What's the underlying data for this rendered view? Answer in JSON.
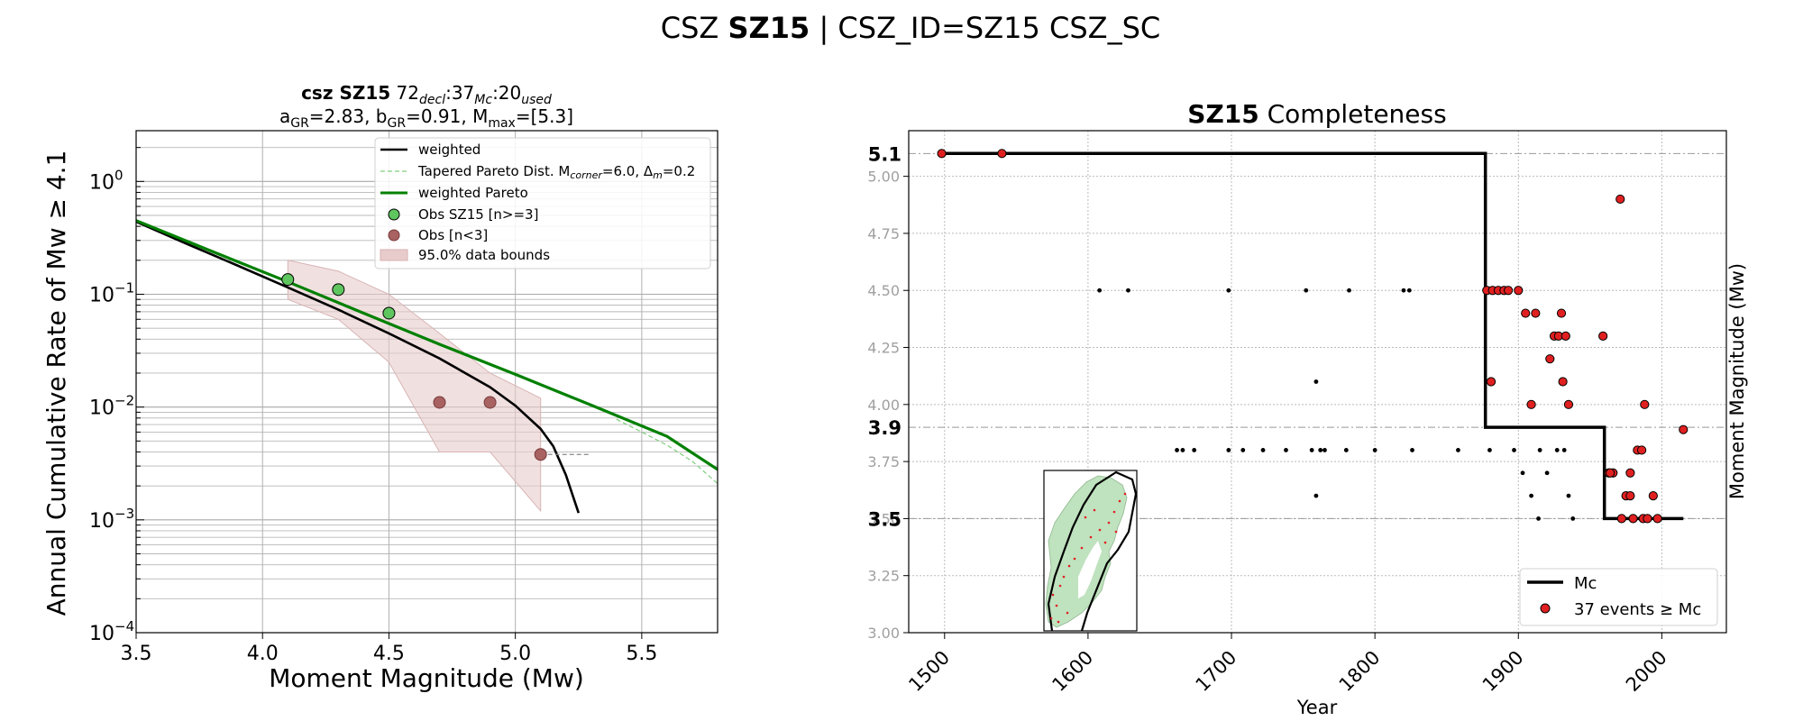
{
  "suptitle": {
    "pre": "CSZ ",
    "bold": "SZ15",
    "post": " | CSZ_ID=SZ15 CSZ_SC"
  },
  "chart_data": [
    {
      "type": "line",
      "title_line1": {
        "bold": "csz SZ15",
        "rest": "  72",
        "sub1": "decl",
        "mid1": ":37",
        "sub2": "Mc",
        "mid2": ":20",
        "sub3": "used"
      },
      "title_line2": {
        "a": "a",
        "a_sub": "GR",
        "a_val": "=2.83,  b",
        "b_sub": "GR",
        "b_val": "=0.91, M",
        "m_sub": "max",
        "m_val": "=[5.3]"
      },
      "xlabel": "Moment Magnitude (Mw)",
      "ylabel": "Annual Cumulative Rate of Mw  ≥  4.1",
      "xlim": [
        3.5,
        5.8
      ],
      "ylim_log10": [
        -4,
        0.45
      ],
      "x_ticks": [
        "3.5",
        "4.0",
        "4.5",
        "5.0",
        "5.5"
      ],
      "x_tick_values": [
        3.5,
        4.0,
        4.5,
        5.0,
        5.5
      ],
      "y_tick_exponents": [
        0,
        -1,
        -2,
        -3,
        -4
      ],
      "y_tick_base": "10",
      "scale_y": "log",
      "grid": true,
      "legend_position": "top-right",
      "legend": [
        {
          "label": "weighted",
          "style": "black-line"
        },
        {
          "label": "Tapered Pareto Dist. M",
          "sub": "corner",
          "label2": "=6.0, Δ",
          "sub2": "m",
          "label3": "=0.2",
          "style": "green-dash"
        },
        {
          "label": "weighted Pareto",
          "style": "green-line"
        },
        {
          "label": "Obs SZ15 [n>=3]",
          "style": "green-dot"
        },
        {
          "label": "Obs [n<3]",
          "style": "brown-dot"
        },
        {
          "label": "95.0% data bounds",
          "style": "band"
        }
      ],
      "series": [
        {
          "role": "weighted",
          "color": "#000000",
          "x": [
            3.5,
            3.7,
            3.9,
            4.1,
            4.3,
            4.5,
            4.7,
            4.9,
            5.0,
            5.1,
            5.15,
            5.2,
            5.25
          ],
          "y": [
            0.44,
            0.28,
            0.18,
            0.115,
            0.073,
            0.045,
            0.027,
            0.015,
            0.0103,
            0.0064,
            0.0045,
            0.0025,
            0.00115
          ]
        },
        {
          "role": "weighted-pareto",
          "color": "#008000",
          "x": [
            3.5,
            3.8,
            4.1,
            4.4,
            4.7,
            5.0,
            5.3,
            5.6,
            5.8
          ],
          "y": [
            0.45,
            0.24,
            0.129,
            0.068,
            0.036,
            0.0195,
            0.0104,
            0.0055,
            0.0028
          ]
        },
        {
          "role": "tapered-pareto",
          "color": "#7fce7f",
          "x": [
            5.4,
            5.5,
            5.6,
            5.7,
            5.8
          ],
          "y": [
            0.0078,
            0.006,
            0.0046,
            0.0033,
            0.0021
          ]
        }
      ],
      "band": {
        "color": "#e8cccc",
        "x": [
          4.1,
          4.3,
          4.5,
          4.7,
          4.9,
          5.1
        ],
        "upper": [
          0.2,
          0.16,
          0.1,
          0.045,
          0.02,
          0.012
        ],
        "lower": [
          0.09,
          0.06,
          0.025,
          0.004,
          0.004,
          0.0012
        ]
      },
      "obs_complete": {
        "color": "#5fc65f",
        "x": [
          4.1,
          4.3,
          4.5
        ],
        "y": [
          0.135,
          0.11,
          0.068
        ]
      },
      "obs_sparse": {
        "color": "#a86262",
        "x": [
          4.7,
          4.9,
          5.1
        ],
        "y": [
          0.011,
          0.011,
          0.0038
        ]
      },
      "mmax_dash": {
        "x": [
          5.1,
          5.3
        ],
        "y": 0.0038
      }
    },
    {
      "type": "scatter",
      "title": {
        "bold": "SZ15",
        "rest": " Completeness"
      },
      "xlabel": "Year",
      "ylabel": "Moment Magnitude (Mw)",
      "xlim": [
        1475,
        2045
      ],
      "ylim": [
        3.0,
        5.2
      ],
      "x_ticks": [
        "1500",
        "1600",
        "1700",
        "1800",
        "1900",
        "2000"
      ],
      "x_tick_values": [
        1500,
        1600,
        1700,
        1800,
        1900,
        2000
      ],
      "y_ticks": [
        "3.00",
        "3.25",
        "3.50",
        "3.75",
        "4.00",
        "4.25",
        "4.50",
        "4.75",
        "5.00"
      ],
      "y_tick_values": [
        3.0,
        3.25,
        3.5,
        3.75,
        4.0,
        4.25,
        4.5,
        4.75,
        5.0
      ],
      "mc_levels": [
        {
          "label": "5.1",
          "value": 5.1
        },
        {
          "label": "3.9",
          "value": 3.9
        },
        {
          "label": "3.5",
          "value": 3.5
        }
      ],
      "grid": true,
      "legend_position": "bottom-right",
      "legend": [
        {
          "label": "Mc",
          "style": "black-step"
        },
        {
          "label": "37 events  ≥  Mc",
          "style": "red-dot"
        }
      ],
      "mc_step": {
        "x": [
          1497,
          1877,
          1877,
          1960,
          1960,
          2015
        ],
        "y": [
          5.1,
          5.1,
          3.9,
          3.9,
          3.5,
          3.5
        ]
      },
      "events_above_mc": {
        "color": "#e02020",
        "points": [
          [
            1498,
            5.1
          ],
          [
            1540,
            5.1
          ],
          [
            1878,
            4.5
          ],
          [
            1882,
            4.5
          ],
          [
            1886,
            4.5
          ],
          [
            1890,
            4.5
          ],
          [
            1893,
            4.5
          ],
          [
            1900,
            4.5
          ],
          [
            1905,
            4.4
          ],
          [
            1912,
            4.4
          ],
          [
            1930,
            4.4
          ],
          [
            1925,
            4.3
          ],
          [
            1928,
            4.3
          ],
          [
            1933,
            4.3
          ],
          [
            1959,
            4.3
          ],
          [
            1922,
            4.2
          ],
          [
            1931,
            4.1
          ],
          [
            1881,
            4.1
          ],
          [
            1909,
            4.0
          ],
          [
            1935,
            4.0
          ],
          [
            1988,
            4.0
          ],
          [
            1971,
            4.9
          ],
          [
            2015,
            3.89
          ],
          [
            1983,
            3.8
          ],
          [
            1986,
            3.8
          ],
          [
            1963,
            3.7
          ],
          [
            1966,
            3.7
          ],
          [
            1978,
            3.7
          ],
          [
            1975,
            3.6
          ],
          [
            1978,
            3.6
          ],
          [
            1994,
            3.6
          ],
          [
            1972,
            3.5
          ],
          [
            1980,
            3.5
          ],
          [
            1987,
            3.5
          ],
          [
            1990,
            3.5
          ],
          [
            1997,
            3.5
          ],
          [
            1964,
            3.7
          ]
        ]
      },
      "events_below_mc": {
        "color": "#000000",
        "points": [
          [
            1608,
            4.5
          ],
          [
            1628,
            4.5
          ],
          [
            1698,
            4.5
          ],
          [
            1752,
            4.5
          ],
          [
            1782,
            4.5
          ],
          [
            1820,
            4.5
          ],
          [
            1824,
            4.5
          ],
          [
            1759,
            4.1
          ],
          [
            1662,
            3.8
          ],
          [
            1666,
            3.8
          ],
          [
            1674,
            3.8
          ],
          [
            1698,
            3.8
          ],
          [
            1708,
            3.8
          ],
          [
            1722,
            3.8
          ],
          [
            1738,
            3.8
          ],
          [
            1756,
            3.8
          ],
          [
            1762,
            3.8
          ],
          [
            1765,
            3.8
          ],
          [
            1780,
            3.8
          ],
          [
            1800,
            3.8
          ],
          [
            1826,
            3.8
          ],
          [
            1858,
            3.8
          ],
          [
            1880,
            3.8
          ],
          [
            1897,
            3.8
          ],
          [
            1915,
            3.8
          ],
          [
            1927,
            3.8
          ],
          [
            1932,
            3.8
          ],
          [
            1903,
            3.7
          ],
          [
            1920,
            3.7
          ],
          [
            1909,
            3.6
          ],
          [
            1935,
            3.6
          ],
          [
            1759,
            3.6
          ],
          [
            1914,
            3.5
          ],
          [
            1938,
            3.5
          ]
        ]
      },
      "inset": {
        "border": "#000000",
        "land_color": "#bfe2bf",
        "region_outline": "#000000",
        "dot_color": "#e02020"
      }
    }
  ]
}
